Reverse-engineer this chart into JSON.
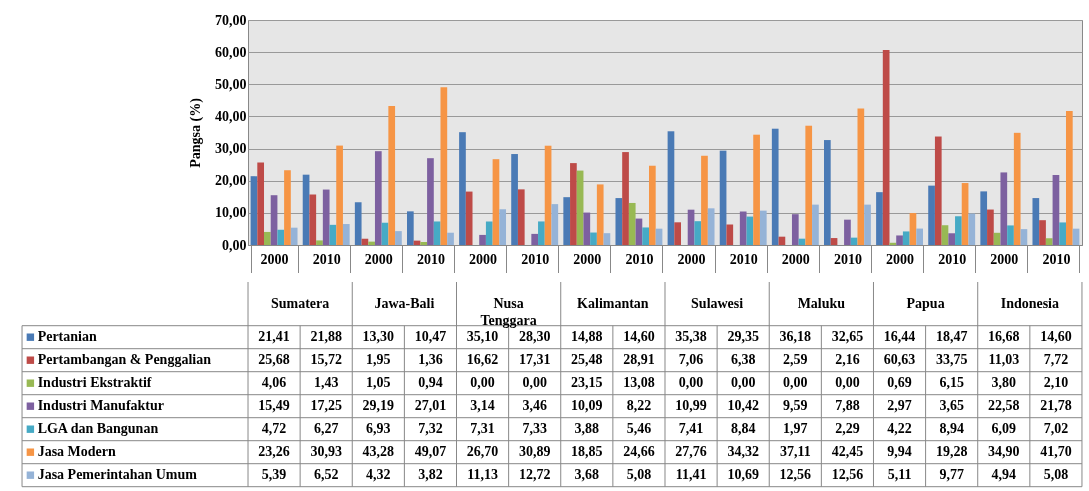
{
  "chart_data": {
    "type": "bar",
    "ylabel": "Pangsa (%)",
    "categories": [
      "2000",
      "2010",
      "2000",
      "2010",
      "2000",
      "2010",
      "2000",
      "2010",
      "2000",
      "2010",
      "2000",
      "2010",
      "2000",
      "2010",
      "2000",
      "2010"
    ],
    "annotations": [
      "Sumatera",
      "Jawa-Bali",
      "Nusa Tenggara",
      "Kalimantan",
      "Sulawesi",
      "Maluku",
      "Papua",
      "Indonesia"
    ],
    "series": [
      {
        "name": "Pertanian",
        "color": "#4a7ab5",
        "values": [
          21.41,
          21.88,
          13.3,
          10.47,
          35.1,
          28.3,
          14.88,
          14.6,
          35.38,
          29.35,
          36.18,
          32.65,
          16.44,
          18.47,
          16.68,
          14.6
        ],
        "value_labels": [
          "21,41",
          "21,88",
          "13,30",
          "10,47",
          "35,10",
          "28,30",
          "14,88",
          "14,60",
          "35,38",
          "29,35",
          "36,18",
          "32,65",
          "16,44",
          "18,47",
          "16,68",
          "14,60"
        ]
      },
      {
        "name": "Pertambangan & Penggalian",
        "color": "#be4b48",
        "values": [
          25.68,
          15.72,
          1.95,
          1.36,
          16.62,
          17.31,
          25.48,
          28.91,
          7.06,
          6.38,
          2.59,
          2.16,
          60.63,
          33.75,
          11.03,
          7.72
        ],
        "value_labels": [
          "25,68",
          "15,72",
          "1,95",
          "1,36",
          "16,62",
          "17,31",
          "25,48",
          "28,91",
          "7,06",
          "6,38",
          "2,59",
          "2,16",
          "60,63",
          "33,75",
          "11,03",
          "7,72"
        ]
      },
      {
        "name": "Industri Ekstraktif",
        "color": "#98b954",
        "values": [
          4.06,
          1.43,
          1.05,
          0.94,
          0.0,
          0.0,
          23.15,
          13.08,
          0.0,
          0.0,
          0.0,
          0.0,
          0.69,
          6.15,
          3.8,
          2.1
        ],
        "value_labels": [
          "4,06",
          "1,43",
          "1,05",
          "0,94",
          "0,00",
          "0,00",
          "23,15",
          "13,08",
          "0,00",
          "0,00",
          "0,00",
          "0,00",
          "0,69",
          "6,15",
          "3,80",
          "2,10"
        ]
      },
      {
        "name": "Industri Manufaktur",
        "color": "#7d60a0",
        "values": [
          15.49,
          17.25,
          29.19,
          27.01,
          3.14,
          3.46,
          10.09,
          8.22,
          10.99,
          10.42,
          9.59,
          7.88,
          2.97,
          3.65,
          22.58,
          21.78
        ],
        "value_labels": [
          "15,49",
          "17,25",
          "29,19",
          "27,01",
          "3,14",
          "3,46",
          "10,09",
          "8,22",
          "10,99",
          "10,42",
          "9,59",
          "7,88",
          "2,97",
          "3,65",
          "22,58",
          "21,78"
        ]
      },
      {
        "name": "LGA dan Bangunan",
        "color": "#46aac5",
        "values": [
          4.72,
          6.27,
          6.93,
          7.32,
          7.31,
          7.33,
          3.88,
          5.46,
          7.41,
          8.84,
          1.97,
          2.29,
          4.22,
          8.94,
          6.09,
          7.02
        ],
        "value_labels": [
          "4,72",
          "6,27",
          "6,93",
          "7,32",
          "7,31",
          "7,33",
          "3,88",
          "5,46",
          "7,41",
          "8,84",
          "1,97",
          "2,29",
          "4,22",
          "8,94",
          "6,09",
          "7,02"
        ]
      },
      {
        "name": "Jasa Modern",
        "color": "#f69545",
        "values": [
          23.26,
          30.93,
          43.28,
          49.07,
          26.7,
          30.89,
          18.85,
          24.66,
          27.76,
          34.32,
          37.11,
          42.45,
          9.94,
          19.28,
          34.9,
          41.7
        ],
        "value_labels": [
          "23,26",
          "30,93",
          "43,28",
          "49,07",
          "26,70",
          "30,89",
          "18,85",
          "24,66",
          "27,76",
          "34,32",
          "37,11",
          "42,45",
          "9,94",
          "19,28",
          "34,90",
          "41,70"
        ]
      },
      {
        "name": "Jasa Pemerintahan Umum",
        "color": "#95b3d7",
        "values": [
          5.39,
          6.52,
          4.32,
          3.82,
          11.13,
          12.72,
          3.68,
          5.08,
          11.41,
          10.69,
          12.56,
          12.56,
          5.11,
          9.77,
          4.94,
          5.08
        ],
        "value_labels": [
          "5,39",
          "6,52",
          "4,32",
          "3,82",
          "11,13",
          "12,72",
          "3,68",
          "5,08",
          "11,41",
          "10,69",
          "12,56",
          "12,56",
          "5,11",
          "9,77",
          "4,94",
          "5,08"
        ]
      }
    ],
    "ylim": [
      0,
      70
    ],
    "yticks": [
      {
        "value": 0,
        "label": "0,00"
      },
      {
        "value": 10,
        "label": "10,00"
      },
      {
        "value": 20,
        "label": "20,00"
      },
      {
        "value": 30,
        "label": "30,00"
      },
      {
        "value": 40,
        "label": "40,00"
      },
      {
        "value": 50,
        "label": "50,00"
      },
      {
        "value": 60,
        "label": "60,00"
      },
      {
        "value": 70,
        "label": "70,00"
      }
    ],
    "grid": "y",
    "legend": "bottom"
  }
}
